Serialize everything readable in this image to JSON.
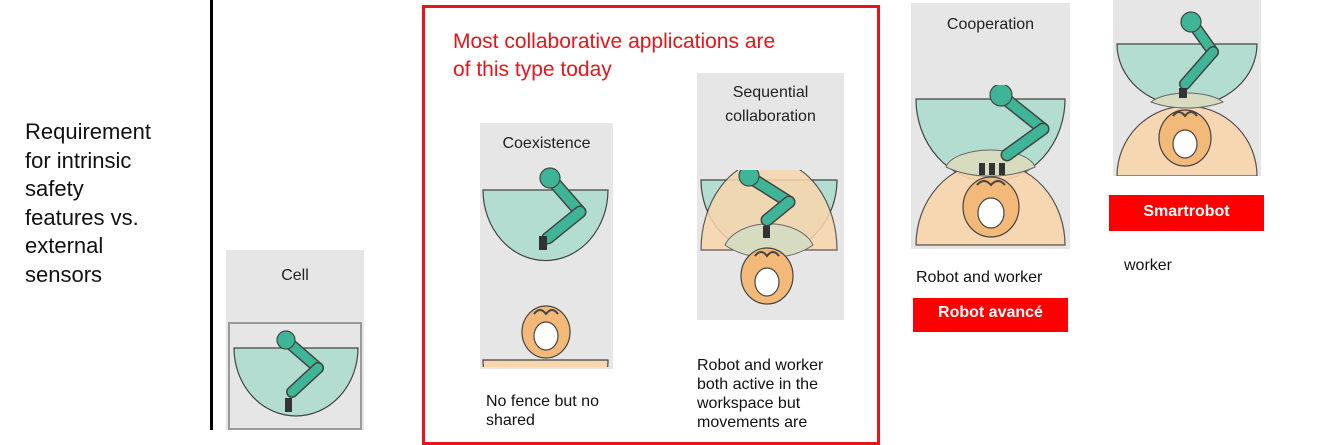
{
  "requirement": {
    "lines": [
      "Requirement",
      "for intrinsic",
      "safety",
      "features vs.",
      "external",
      "sensors"
    ]
  },
  "highlight_note": {
    "lines": [
      "Most collaborative applications are",
      "of this type today"
    ]
  },
  "panels": {
    "cell": {
      "title": "Cell"
    },
    "coexistence": {
      "title": "Coexistence",
      "caption_lines": [
        "No fence but no",
        "shared"
      ]
    },
    "sequential": {
      "title_lines": [
        "Sequential",
        "collaboration"
      ],
      "caption_lines": [
        "Robot and worker",
        "both active in the",
        "workspace but",
        "movements are"
      ]
    },
    "cooperation": {
      "title": "Cooperation",
      "caption": "Robot and worker",
      "badge": "Robot avancé"
    },
    "responsive": {
      "caption": "worker",
      "badge": "Smartrobot"
    }
  },
  "colors": {
    "robot_zone": "#b4ddd2",
    "robot_arm": "#3fb597",
    "worker_zone": "#f9d6ac",
    "worker_body": "#f2b978",
    "highlight": "#e8141a",
    "badge": "#ff0000",
    "panel_bg": "#e6e6e6"
  }
}
